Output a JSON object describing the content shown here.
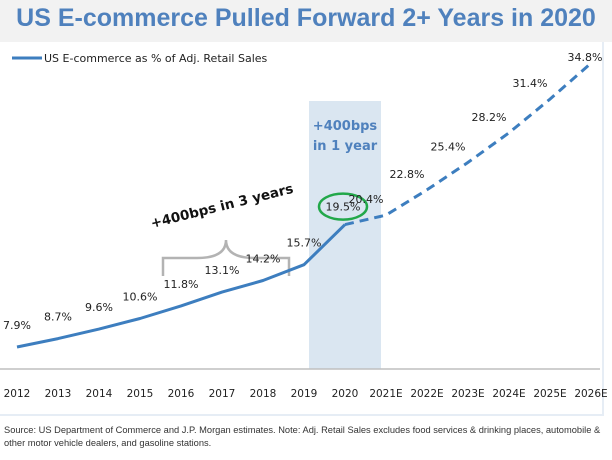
{
  "title": "US E-commerce Pulled Forward 2+ Years in 2020",
  "source": "Source: US Department of Commerce and J.P. Morgan estimates. Note: Adj. Retail Sales excludes food services & drinking places, automobile & other motor vehicle dealers, and gasoline stations.",
  "colors": {
    "line": "#3d7ebf",
    "highlight_band": "#dae6f1",
    "circle": "#22a84a",
    "title": "#4f81bd",
    "bracket": "#b3b3b3"
  },
  "chart_data": {
    "type": "line",
    "title": "US E-commerce Pulled Forward 2+ Years in 2020",
    "xlabel": "",
    "ylabel": "",
    "grid": false,
    "legend": {
      "position": "top-left",
      "entries": [
        "US E-commerce as % of Adj. Retail Sales"
      ]
    },
    "categories": [
      "2012",
      "2013",
      "2014",
      "2015",
      "2016",
      "2017",
      "2018",
      "2019",
      "2020",
      "2021E",
      "2022E",
      "2023E",
      "2024E",
      "2025E",
      "2026E"
    ],
    "series": [
      {
        "name": "US E-commerce as % of Adj. Retail Sales",
        "values": [
          7.9,
          8.7,
          9.6,
          10.6,
          11.8,
          13.1,
          14.2,
          15.7,
          19.5,
          20.4,
          22.8,
          25.4,
          28.2,
          31.4,
          34.8
        ],
        "data_labels": [
          "7.9%",
          "8.7%",
          "9.6%",
          "10.6%",
          "11.8%",
          "13.1%",
          "14.2%",
          "15.7%",
          "19.5%",
          "20.4%",
          "22.8%",
          "25.4%",
          "28.2%",
          "31.4%",
          "34.8%"
        ],
        "actual_through": "2020",
        "estimated_style": "dashed"
      }
    ],
    "annotations": [
      {
        "text_lines": [
          "+400bps",
          "in 1 year"
        ],
        "target": "2020",
        "type": "shaded-band"
      },
      {
        "text": "+400bps in 3 years",
        "range": [
          "2016",
          "2019"
        ],
        "type": "bracket"
      },
      {
        "text": "19.5%",
        "target": "2020",
        "type": "circle"
      }
    ]
  }
}
